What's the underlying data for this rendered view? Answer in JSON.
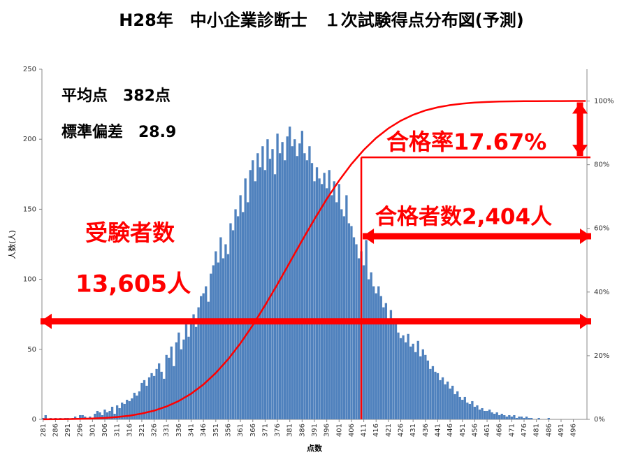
{
  "chart_data": {
    "type": "bar",
    "title": "H28年　中小企業診断士　１次試験得点分布図(予測)",
    "y_label": "人数(人)",
    "x_label": "点数",
    "annotations": [
      "平均点　382点",
      "標準偏差　28.9",
      "受験者数",
      "13,605人",
      "合格率17.67%",
      "合格者数2,404人"
    ],
    "color": "#4f81bd",
    "x": [
      281,
      282,
      283,
      284,
      285,
      286,
      287,
      288,
      289,
      290,
      291,
      292,
      293,
      294,
      295,
      296,
      297,
      298,
      299,
      300,
      301,
      302,
      303,
      304,
      305,
      306,
      307,
      308,
      309,
      310,
      311,
      312,
      313,
      314,
      315,
      316,
      317,
      318,
      319,
      320,
      321,
      322,
      323,
      324,
      325,
      326,
      327,
      328,
      329,
      330,
      331,
      332,
      333,
      334,
      335,
      336,
      337,
      338,
      339,
      340,
      341,
      342,
      343,
      344,
      345,
      346,
      347,
      348,
      349,
      350,
      351,
      352,
      353,
      354,
      355,
      356,
      357,
      358,
      359,
      360,
      361,
      362,
      363,
      364,
      365,
      366,
      367,
      368,
      369,
      370,
      371,
      372,
      373,
      374,
      375,
      376,
      377,
      378,
      379,
      380,
      381,
      382,
      383,
      384,
      385,
      386,
      387,
      388,
      389,
      390,
      391,
      392,
      393,
      394,
      395,
      396,
      397,
      398,
      399,
      400,
      401,
      402,
      403,
      404,
      405,
      406,
      407,
      408,
      409,
      410,
      411,
      412,
      413,
      414,
      415,
      416,
      417,
      418,
      419,
      420,
      421,
      422,
      423,
      424,
      425,
      426,
      427,
      428,
      429,
      430,
      431,
      432,
      433,
      434,
      435,
      436,
      437,
      438,
      439,
      440,
      441,
      442,
      443,
      444,
      445,
      446,
      447,
      448,
      449,
      450,
      451,
      452,
      453,
      454,
      455,
      456,
      457,
      458,
      459,
      460,
      461,
      462,
      463,
      464,
      465,
      466,
      467,
      468,
      469,
      470,
      471,
      472,
      473,
      474,
      475,
      476,
      477,
      478,
      479,
      480,
      481,
      482,
      483,
      484,
      485,
      486,
      487,
      488,
      489,
      490,
      491,
      492,
      493,
      494,
      495,
      496,
      497,
      498,
      499,
      500,
      501
    ],
    "values": [
      1,
      3,
      0,
      1,
      0,
      1,
      0,
      1,
      0,
      1,
      1,
      0,
      1,
      2,
      1,
      3,
      3,
      2,
      1,
      2,
      1,
      4,
      6,
      5,
      3,
      7,
      5,
      6,
      9,
      4,
      10,
      8,
      12,
      11,
      14,
      13,
      15,
      19,
      17,
      20,
      26,
      28,
      24,
      30,
      33,
      31,
      36,
      40,
      34,
      29,
      46,
      44,
      52,
      38,
      55,
      62,
      50,
      57,
      68,
      59,
      70,
      75,
      66,
      80,
      88,
      90,
      95,
      84,
      104,
      110,
      120,
      112,
      130,
      115,
      125,
      118,
      140,
      135,
      150,
      145,
      160,
      148,
      172,
      155,
      178,
      185,
      170,
      190,
      180,
      195,
      178,
      200,
      186,
      193,
      175,
      204,
      190,
      198,
      185,
      202,
      209,
      195,
      200,
      188,
      197,
      206,
      190,
      185,
      195,
      183,
      170,
      180,
      172,
      168,
      176,
      165,
      178,
      160,
      170,
      155,
      168,
      150,
      145,
      160,
      140,
      138,
      130,
      125,
      115,
      120,
      110,
      128,
      100,
      105,
      95,
      90,
      95,
      88,
      80,
      83,
      72,
      78,
      68,
      70,
      62,
      58,
      60,
      55,
      61,
      52,
      54,
      48,
      56,
      45,
      50,
      46,
      42,
      36,
      38,
      34,
      33,
      28,
      30,
      25,
      27,
      22,
      24,
      18,
      20,
      16,
      14,
      16,
      12,
      11,
      13,
      9,
      10,
      7,
      8,
      6,
      6,
      7,
      5,
      4,
      5,
      3,
      4,
      3,
      2,
      3,
      2,
      3,
      1,
      2,
      2,
      1,
      2,
      1,
      1,
      0,
      0,
      1,
      0,
      0,
      0,
      1,
      0,
      0,
      0,
      0,
      0,
      0,
      0,
      0,
      0,
      0,
      0,
      0,
      0,
      0,
      0
    ],
    "xlim": [
      280.5,
      501.5
    ],
    "xticks": [
      281,
      286,
      291,
      296,
      301,
      306,
      311,
      316,
      321,
      326,
      331,
      336,
      341,
      346,
      351,
      356,
      361,
      366,
      371,
      376,
      381,
      386,
      391,
      396,
      401,
      406,
      411,
      416,
      421,
      426,
      431,
      436,
      441,
      446,
      451,
      456,
      461,
      466,
      471,
      476,
      481,
      486,
      491,
      496
    ],
    "ylim": [
      0,
      250
    ],
    "yticks": [
      0,
      50,
      100,
      150,
      200,
      250
    ],
    "y2lim": [
      0,
      110
    ],
    "y2ticks": [
      {
        "value": 0,
        "label": "0%"
      },
      {
        "value": 20,
        "label": "20%"
      },
      {
        "value": 40,
        "label": "40%"
      },
      {
        "value": 60,
        "label": "60%"
      },
      {
        "value": 80,
        "label": "80%"
      },
      {
        "value": 100,
        "label": "100%"
      }
    ],
    "line": {
      "color": "#ff0000",
      "axis": "y2",
      "x": [
        281,
        286,
        291,
        296,
        301,
        306,
        311,
        316,
        321,
        326,
        331,
        336,
        341,
        346,
        351,
        356,
        361,
        366,
        371,
        376,
        381,
        386,
        391,
        396,
        401,
        406,
        411,
        416,
        421,
        426,
        431,
        436,
        441,
        446,
        451,
        456,
        461,
        466,
        471,
        476,
        481,
        486,
        491,
        496,
        501
      ],
      "values": [
        0.03,
        0.05,
        0.09,
        0.15,
        0.27,
        0.45,
        0.74,
        1.17,
        1.82,
        2.74,
        4.03,
        5.77,
        8.06,
        10.97,
        14.57,
        18.89,
        23.92,
        29.6,
        35.83,
        42.47,
        49.32,
        56.2,
        62.89,
        69.22,
        75.02,
        80.18,
        84.64,
        88.37,
        91.42,
        93.82,
        95.66,
        97.04,
        98.03,
        98.72,
        99.19,
        99.5,
        99.7,
        99.83,
        99.9,
        99.95,
        99.97,
        99.98,
        99.99,
        100,
        100
      ]
    },
    "pass_score": 410,
    "pass_level": 82.3,
    "examinee_level": 70
  }
}
